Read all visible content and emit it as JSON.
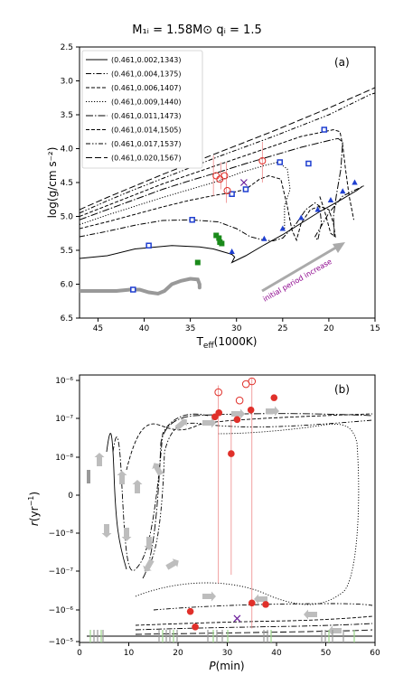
{
  "figure": {
    "title": "M₁ᵢ = 1.58M⊙  qᵢ = 1.5"
  },
  "legend_entries": [
    "(0.461,0.002,1343)",
    "(0.461,0.004,1375)",
    "(0.461,0.006,1407)",
    "(0.461,0.009,1440)",
    "(0.461,0.011,1473)",
    "(0.461,0.014,1505)",
    "(0.461,0.017,1537)",
    "(0.461,0.020,1567)"
  ],
  "chart_data": [
    {
      "type": "line",
      "panel_label": "(a)",
      "xlabel": "T_eff(1000K)",
      "ylabel": "log(g/cm s⁻²)",
      "xlim": [
        47,
        15
      ],
      "ylim": [
        6.5,
        2.5
      ],
      "y_inverted": true,
      "x_inverted": true,
      "xticks": [
        45,
        40,
        35,
        30,
        25,
        20,
        15
      ],
      "xtick_labels": [
        "45",
        "40",
        "35",
        "30",
        "25",
        "20",
        "15"
      ],
      "yticks": [
        2.5,
        3.0,
        3.5,
        4.0,
        4.5,
        5.0,
        5.5,
        6.0,
        6.5
      ],
      "ytick_labels": [
        "2.5",
        "3.0",
        "3.5",
        "4.0",
        "4.5",
        "5.0",
        "5.5",
        "6.0",
        "6.5"
      ],
      "legend_position": "top-left",
      "annotation": "initial period increase",
      "series": [
        {
          "dash": "solid",
          "points": [
            [
              47,
              5.62
            ],
            [
              44,
              5.58
            ],
            [
              41,
              5.48
            ],
            [
              37,
              5.43
            ],
            [
              34,
              5.45
            ],
            [
              32.5,
              5.48
            ],
            [
              31.5,
              5.52
            ],
            [
              30.5,
              5.56
            ],
            [
              30.2,
              5.6
            ],
            [
              30.5,
              5.68
            ],
            [
              29,
              5.58
            ],
            [
              27,
              5.42
            ],
            [
              25,
              5.27
            ],
            [
              23,
              5.1
            ],
            [
              21,
              4.93
            ],
            [
              19,
              4.78
            ],
            [
              17,
              4.62
            ],
            [
              16.3,
              4.55
            ]
          ]
        },
        {
          "dash": "dashdot",
          "points": [
            [
              47,
              5.3
            ],
            [
              44,
              5.22
            ],
            [
              41,
              5.13
            ],
            [
              38,
              5.06
            ],
            [
              35,
              5.05
            ],
            [
              32,
              5.08
            ],
            [
              30,
              5.18
            ],
            [
              28.5,
              5.3
            ],
            [
              27,
              5.35
            ],
            [
              26,
              5.36
            ],
            [
              25,
              5.32
            ],
            [
              23.5,
              5.1
            ],
            [
              22.5,
              4.9
            ],
            [
              21.5,
              4.8
            ],
            [
              21,
              4.85
            ],
            [
              20.8,
              5.1
            ],
            [
              21.2,
              5.35
            ],
            [
              21.5,
              5.3
            ],
            [
              20,
              4.95
            ],
            [
              18.5,
              4.7
            ],
            [
              17,
              4.6
            ],
            [
              16.2,
              4.55
            ]
          ]
        },
        {
          "dash": "dashed",
          "points": [
            [
              47,
              5.18
            ],
            [
              44,
              5.08
            ],
            [
              41,
              4.97
            ],
            [
              38,
              4.86
            ],
            [
              35,
              4.76
            ],
            [
              32,
              4.68
            ],
            [
              30.5,
              4.65
            ],
            [
              29,
              4.6
            ],
            [
              27.5,
              4.45
            ],
            [
              26.5,
              4.4
            ],
            [
              25.2,
              4.45
            ],
            [
              24.5,
              4.85
            ],
            [
              24,
              5.2
            ],
            [
              23.5,
              5.35
            ],
            [
              23,
              5.1
            ],
            [
              22,
              4.9
            ],
            [
              21,
              4.85
            ],
            [
              20,
              4.9
            ],
            [
              19.5,
              5.1
            ],
            [
              19.3,
              5.3
            ],
            [
              19.8,
              5.25
            ],
            [
              20.5,
              4.9
            ],
            [
              21,
              4.7
            ]
          ]
        },
        {
          "dash": "dotted",
          "points": [
            [
              47,
              5.12
            ],
            [
              44,
              4.98
            ],
            [
              41,
              4.85
            ],
            [
              38,
              4.72
            ],
            [
              35,
              4.6
            ],
            [
              32,
              4.48
            ],
            [
              29.5,
              4.35
            ],
            [
              27,
              4.25
            ],
            [
              25.5,
              4.2
            ],
            [
              24.5,
              4.3
            ],
            [
              24.2,
              4.6
            ],
            [
              24.8,
              4.85
            ],
            [
              24.8,
              5.2
            ]
          ]
        },
        {
          "dash": "longdashdot",
          "points": [
            [
              47,
              5.05
            ],
            [
              44,
              4.9
            ],
            [
              41,
              4.75
            ],
            [
              38,
              4.6
            ],
            [
              35,
              4.47
            ],
            [
              32,
              4.35
            ],
            [
              29,
              4.22
            ],
            [
              26,
              4.1
            ],
            [
              23,
              3.98
            ],
            [
              20,
              3.88
            ],
            [
              19,
              3.85
            ],
            [
              18.5,
              3.9
            ],
            [
              18.7,
              4.3
            ],
            [
              19.2,
              4.7
            ],
            [
              19.5,
              5.0
            ],
            [
              19.4,
              5.3
            ]
          ]
        },
        {
          "dash": "dashed",
          "points": [
            [
              47,
              5.0
            ],
            [
              44,
              4.84
            ],
            [
              41,
              4.68
            ],
            [
              38,
              4.52
            ],
            [
              35,
              4.38
            ],
            [
              32,
              4.24
            ],
            [
              29,
              4.1
            ],
            [
              26,
              3.96
            ],
            [
              23,
              3.82
            ],
            [
              20.5,
              3.75
            ],
            [
              19.5,
              3.72
            ],
            [
              18.8,
              3.75
            ],
            [
              18.5,
              3.95
            ],
            [
              18.2,
              4.3
            ],
            [
              17.8,
              4.7
            ],
            [
              17.3,
              5.05
            ]
          ]
        },
        {
          "dash": "dashdotdot",
          "points": [
            [
              47,
              4.95
            ],
            [
              44,
              4.77
            ],
            [
              41,
              4.6
            ],
            [
              38,
              4.44
            ],
            [
              35,
              4.28
            ],
            [
              32,
              4.12
            ],
            [
              29,
              3.97
            ],
            [
              26,
              3.82
            ],
            [
              23,
              3.66
            ],
            [
              20,
              3.5
            ],
            [
              17,
              3.3
            ],
            [
              15.5,
              3.2
            ],
            [
              15,
              3.18
            ]
          ]
        },
        {
          "dash": "longdash",
          "points": [
            [
              47,
              4.9
            ],
            [
              44,
              4.72
            ],
            [
              41,
              4.55
            ],
            [
              38,
              4.38
            ],
            [
              35,
              4.22
            ],
            [
              32,
              4.06
            ],
            [
              29,
              3.9
            ],
            [
              26,
              3.74
            ],
            [
              23,
              3.57
            ],
            [
              20,
              3.4
            ],
            [
              17,
              3.22
            ],
            [
              15,
              3.1
            ]
          ]
        }
      ],
      "gray_track": [
        [
          47,
          6.1
        ],
        [
          45,
          6.1
        ],
        [
          43,
          6.1
        ],
        [
          41.5,
          6.08
        ],
        [
          40.5,
          6.08
        ],
        [
          39.5,
          6.12
        ],
        [
          38.5,
          6.14
        ],
        [
          37.8,
          6.1
        ],
        [
          37,
          6.0
        ],
        [
          36,
          5.95
        ],
        [
          35,
          5.92
        ],
        [
          34.2,
          5.93
        ],
        [
          34,
          6.0
        ],
        [
          34,
          6.05
        ]
      ],
      "blue_squares": [
        [
          41.2,
          6.08
        ],
        [
          39.5,
          5.43
        ],
        [
          34.8,
          5.05
        ],
        [
          30.5,
          4.67
        ],
        [
          29,
          4.6
        ],
        [
          25.3,
          4.2
        ],
        [
          22.2,
          4.22
        ],
        [
          20.5,
          3.72
        ]
      ],
      "blue_triangles": [
        [
          30.5,
          5.52
        ],
        [
          27,
          5.33
        ],
        [
          25,
          5.18
        ],
        [
          23,
          5.02
        ],
        [
          21.2,
          4.9
        ],
        [
          19.8,
          4.76
        ],
        [
          18.5,
          4.63
        ],
        [
          17.2,
          4.5
        ]
      ],
      "green_squares": [
        [
          34.2,
          5.68
        ],
        [
          32.2,
          5.28
        ],
        [
          31.9,
          5.32
        ],
        [
          31.6,
          5.4
        ],
        [
          31.8,
          5.38
        ]
      ],
      "red_circles_open": [
        [
          32.2,
          4.4
        ],
        [
          31.3,
          4.4
        ],
        [
          31.0,
          4.62
        ],
        [
          27.2,
          4.18
        ],
        [
          31.8,
          4.45
        ]
      ],
      "cross": [
        [
          29.2,
          4.5
        ]
      ],
      "red_errorbars": [
        [
          31.7,
          4.2,
          4.6
        ],
        [
          32.5,
          4.1,
          4.7
        ],
        [
          31.1,
          4.2,
          4.8
        ],
        [
          27.2,
          3.9,
          4.5
        ]
      ]
    },
    {
      "type": "line",
      "panel_label": "(b)",
      "xlabel": "P(min)",
      "ylabel": "r(yr⁻¹)",
      "xlim": [
        0,
        60
      ],
      "ylim": [
        -1e-05,
        1e-06
      ],
      "yscale": "symlog",
      "xticks": [
        0,
        10,
        20,
        30,
        40,
        50,
        60
      ],
      "xtick_labels": [
        "0",
        "10",
        "20",
        "30",
        "40",
        "50",
        "60"
      ],
      "yticks": [
        "1e-6",
        "1e-7",
        "1e-8",
        "0",
        "-1e-8",
        "-1e-7",
        "-1e-6",
        "-1e-5"
      ],
      "ytick_labels": [
        "10⁻⁶",
        "10⁻⁷",
        "10⁻⁸",
        "0",
        "−10⁻⁸",
        "−10⁻⁷",
        "−10⁻⁶",
        "−10⁻⁵"
      ],
      "red_filled": [
        [
          27.5,
          0.62
        ],
        [
          28.3,
          0.65
        ],
        [
          30.8,
          0.35
        ],
        [
          32,
          0.6
        ],
        [
          34.8,
          0.67
        ],
        [
          39.5,
          0.76
        ],
        [
          35,
          -0.72
        ],
        [
          37.8,
          -0.73
        ],
        [
          22.5,
          -0.78
        ],
        [
          23.5,
          -0.89
        ]
      ],
      "red_open": [
        [
          28.2,
          0.8
        ],
        [
          32.5,
          0.74
        ],
        [
          33.8,
          0.86
        ],
        [
          35,
          0.88
        ]
      ],
      "cross": [
        [
          32,
          -0.83
        ]
      ],
      "red_errorbars": [
        [
          28.2,
          -0.58,
          0.85
        ],
        [
          35,
          -0.9,
          0.9
        ],
        [
          30.8,
          -0.52,
          0.6
        ]
      ]
    }
  ]
}
